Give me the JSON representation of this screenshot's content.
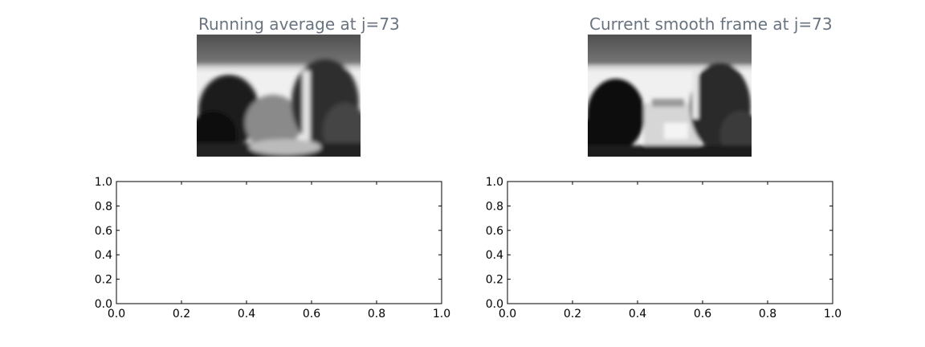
{
  "colors": {
    "title": "#6a7480",
    "axis": "#000000",
    "photo_sky": "#f2f2f2",
    "photo_roof": "#5a5a5a",
    "photo_trees": "#111111"
  },
  "panels": [
    {
      "title": "Running average at j=73",
      "image": {
        "type": "grayscale-frame",
        "variant": "averaged"
      }
    },
    {
      "title": "Current smooth frame at j=73",
      "image": {
        "type": "grayscale-frame",
        "variant": "current"
      }
    }
  ],
  "chart_data": [
    {
      "type": "line",
      "title": "",
      "xlabel": "",
      "ylabel": "",
      "xlim": [
        0.0,
        1.0
      ],
      "ylim": [
        0.0,
        1.0
      ],
      "x_ticks": [
        "0.0",
        "0.2",
        "0.4",
        "0.6",
        "0.8",
        "1.0"
      ],
      "y_ticks": [
        "0.0",
        "0.2",
        "0.4",
        "0.6",
        "0.8",
        "1.0"
      ],
      "series": [],
      "grid": false
    },
    {
      "type": "line",
      "title": "",
      "xlabel": "",
      "ylabel": "",
      "xlim": [
        0.0,
        1.0
      ],
      "ylim": [
        0.0,
        1.0
      ],
      "x_ticks": [
        "0.0",
        "0.2",
        "0.4",
        "0.6",
        "0.8",
        "1.0"
      ],
      "y_ticks": [
        "0.0",
        "0.2",
        "0.4",
        "0.6",
        "0.8",
        "1.0"
      ],
      "series": [],
      "grid": false
    }
  ]
}
